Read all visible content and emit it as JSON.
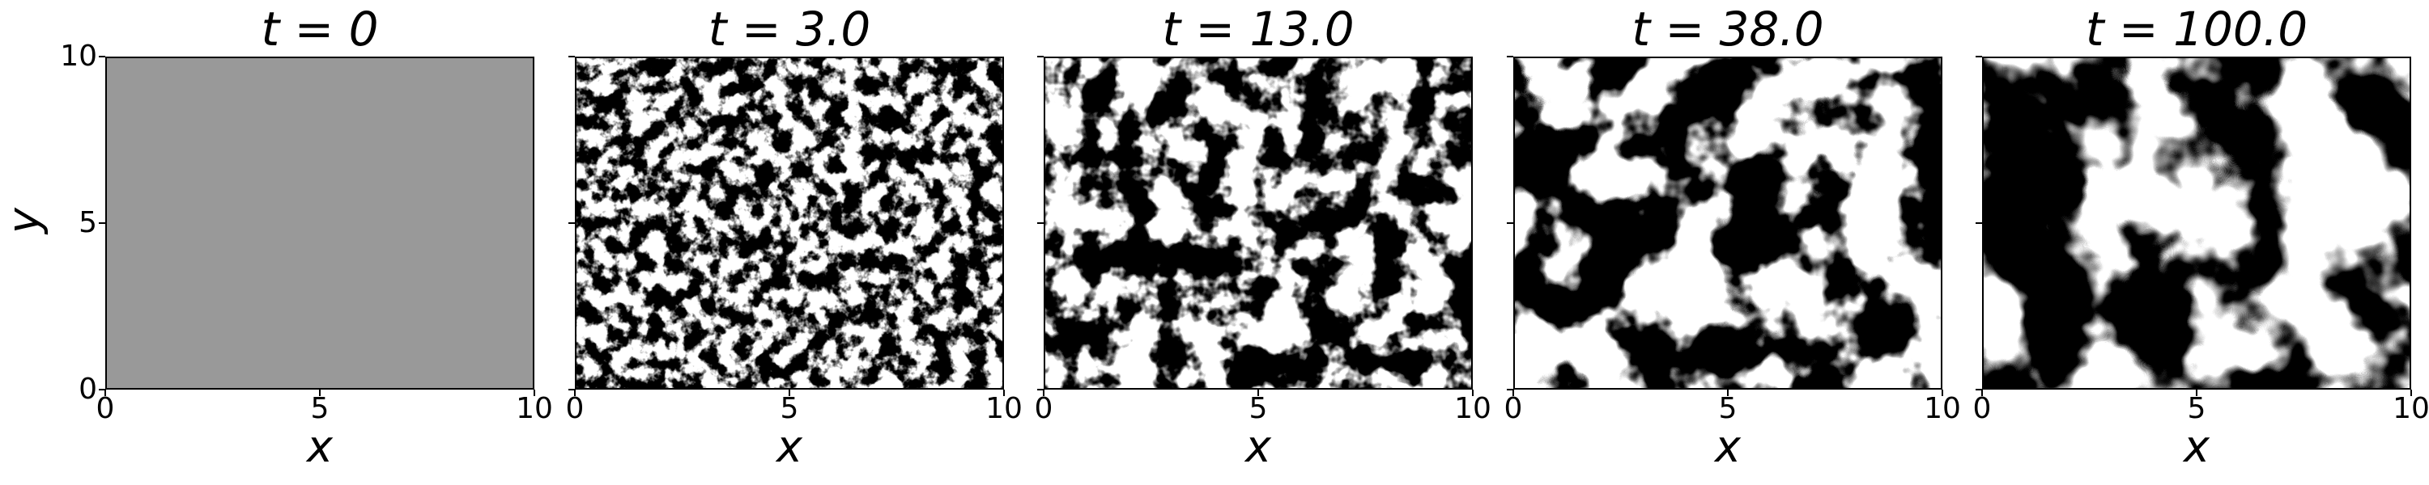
{
  "chart_data": {
    "type": "heatmap",
    "colormap": "grayscale",
    "xlabel": "x",
    "ylabel": "y",
    "xlim": [
      0,
      10
    ],
    "ylim": [
      0,
      10
    ],
    "xticks": [
      "0",
      "5",
      "10"
    ],
    "yticks": [
      "0",
      "5",
      "10"
    ],
    "panels": [
      {
        "title": "t = 0",
        "time": 0,
        "pattern": "uniform",
        "fill": "#999999"
      },
      {
        "title": "t = 3.0",
        "time": 3.0,
        "pattern": "fine-noise",
        "contrast": 0.55
      },
      {
        "title": "t = 13.0",
        "time": 13.0,
        "pattern": "coarsening",
        "contrast": 0.8
      },
      {
        "title": "t = 38.0",
        "time": 38.0,
        "pattern": "domains",
        "contrast": 0.95
      },
      {
        "title": "t = 100.0",
        "time": 100.0,
        "pattern": "large-domains",
        "contrast": 1.0
      }
    ]
  }
}
